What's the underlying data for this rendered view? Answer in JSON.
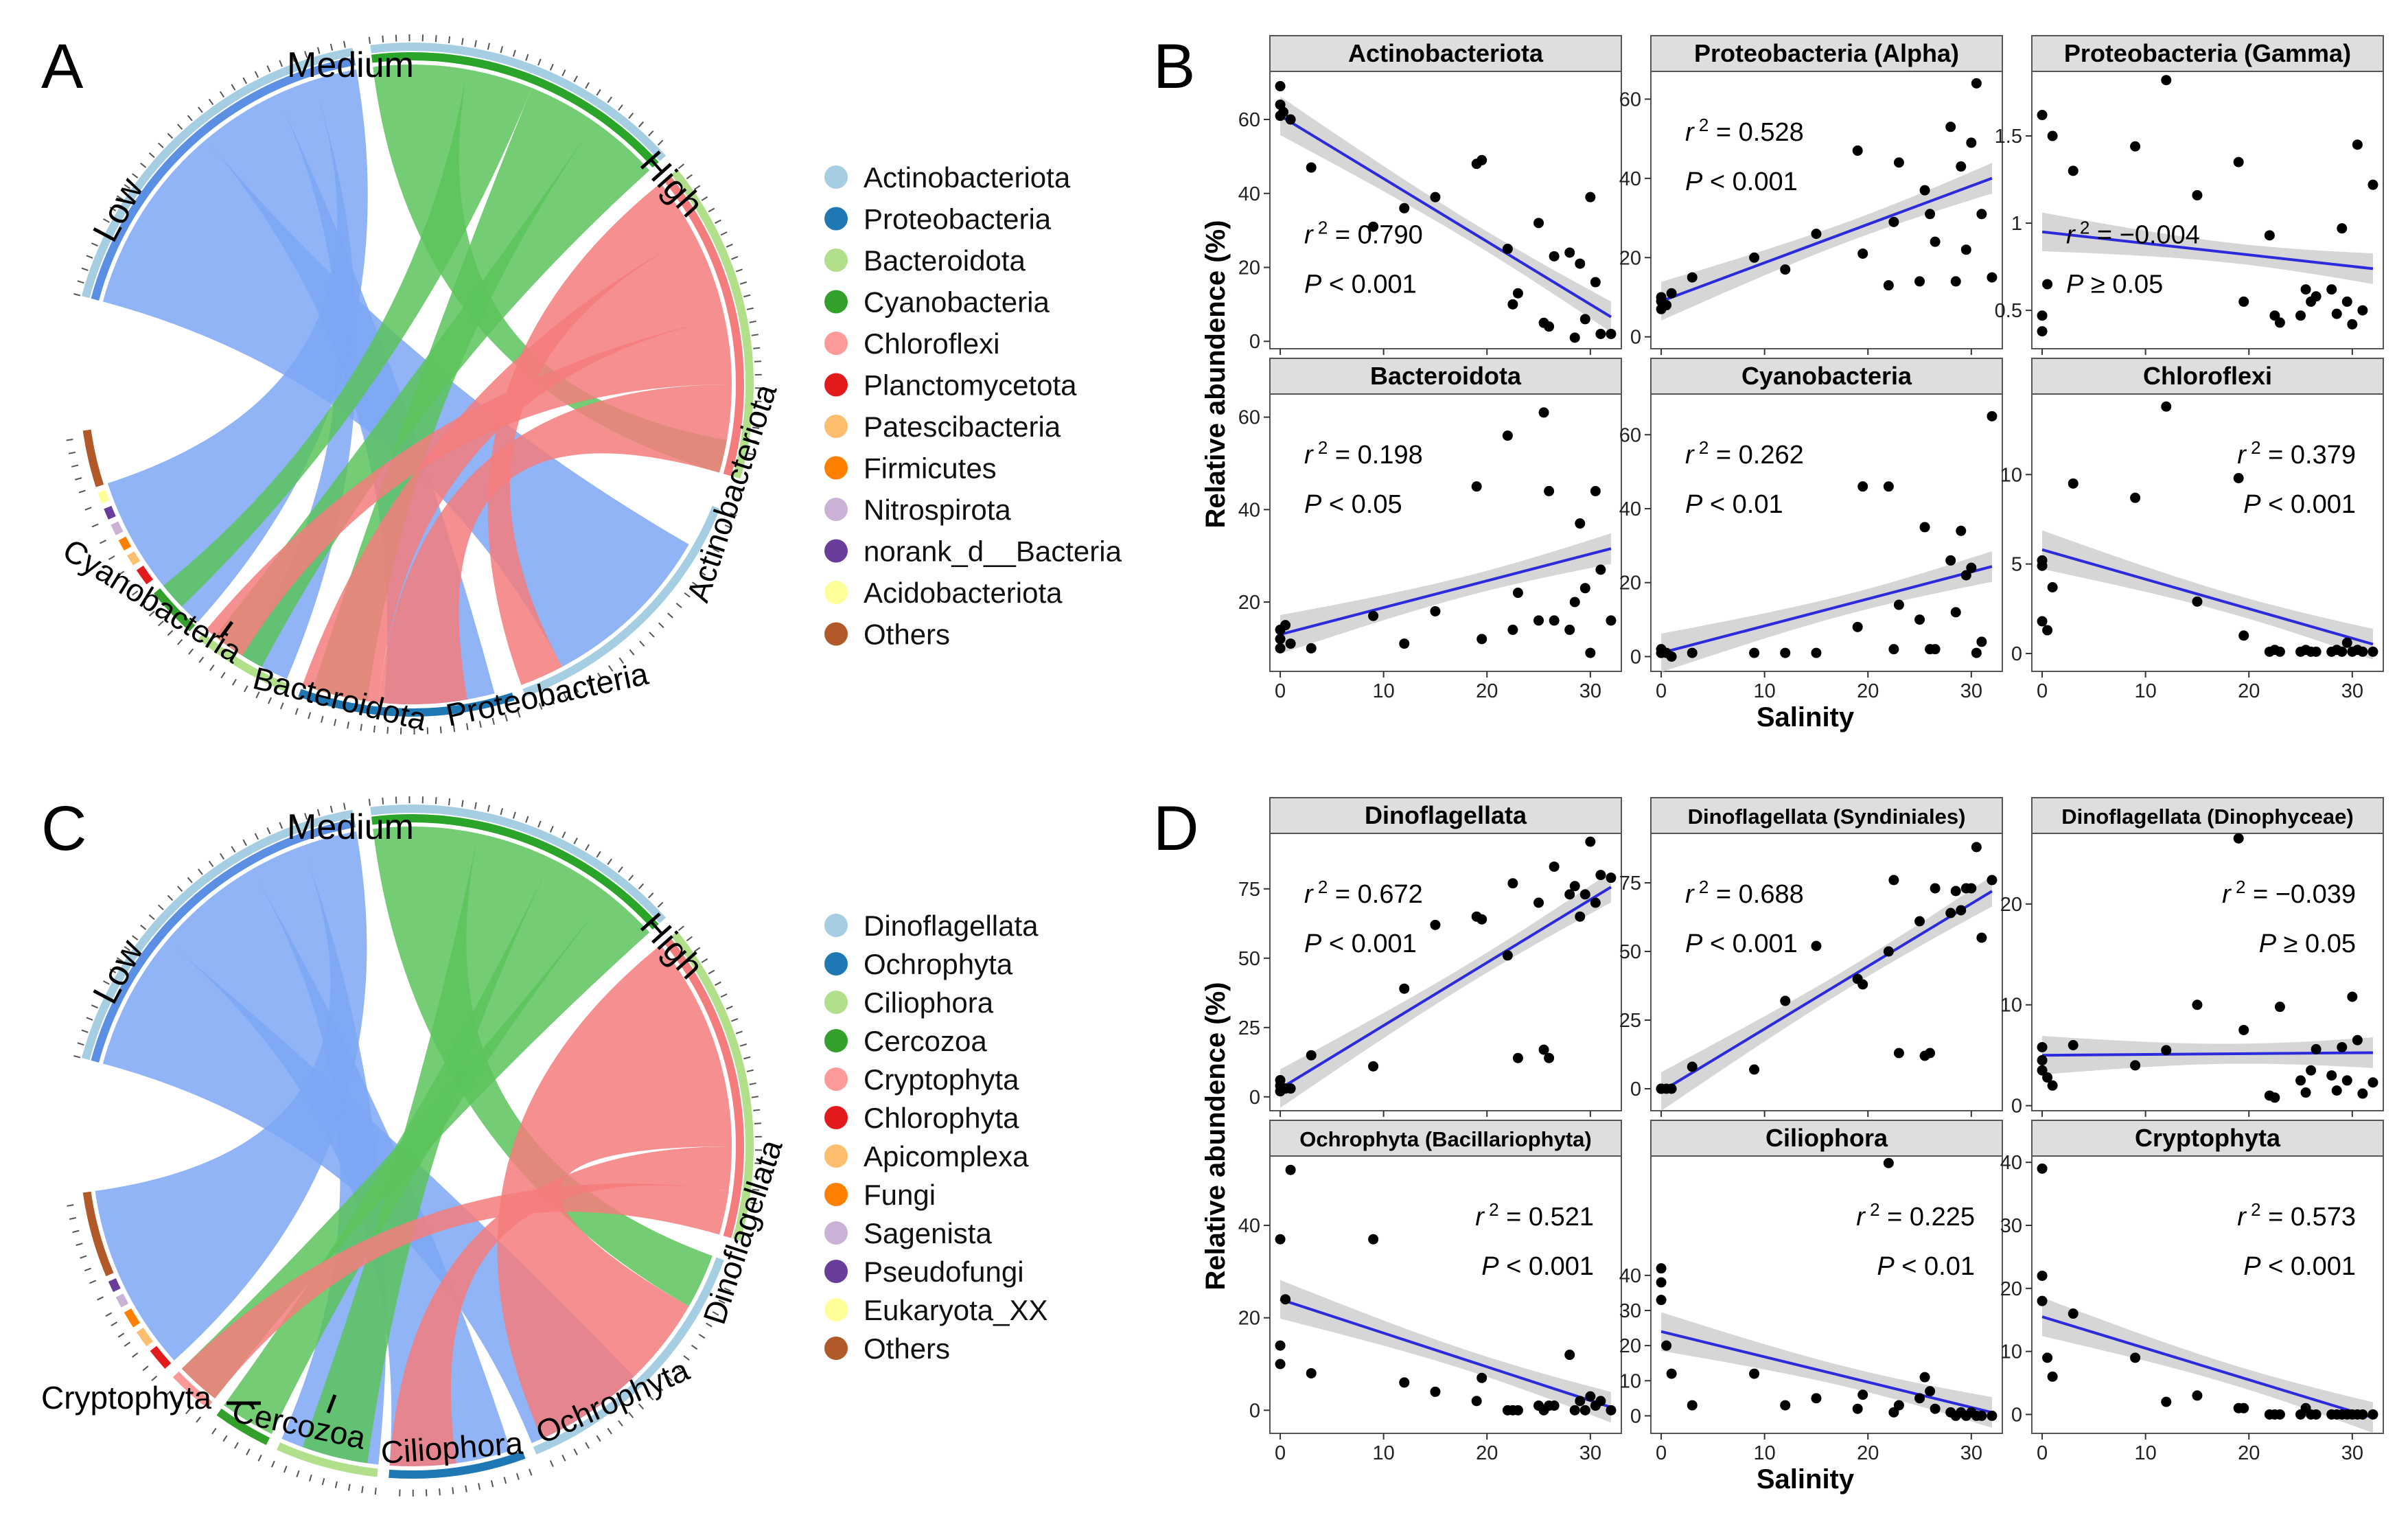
{
  "panels": {
    "A": "A",
    "B": "B",
    "C": "C",
    "D": "D"
  },
  "chord_A": {
    "groups": [
      "Low",
      "Medium",
      "High"
    ],
    "sector_labels": [
      "Cyanobacteria",
      "Bacteroidota",
      "Proteobacteria",
      "Actinobacteriota"
    ],
    "legend": [
      {
        "label": "Actinobacteriota",
        "color": "#a6cee3"
      },
      {
        "label": "Proteobacteria",
        "color": "#1f78b4"
      },
      {
        "label": "Bacteroidota",
        "color": "#b2df8a"
      },
      {
        "label": "Cyanobacteria",
        "color": "#33a02c"
      },
      {
        "label": "Chloroflexi",
        "color": "#fb9a99"
      },
      {
        "label": "Planctomycetota",
        "color": "#e31a1c"
      },
      {
        "label": "Patescibacteria",
        "color": "#fdbf6f"
      },
      {
        "label": "Firmicutes",
        "color": "#ff7f00"
      },
      {
        "label": "Nitrospirota",
        "color": "#cab2d6"
      },
      {
        "label": "norank_d__Bacteria",
        "color": "#6a3d9a"
      },
      {
        "label": "Acidobacteriota",
        "color": "#ffff99"
      },
      {
        "label": "Others",
        "color": "#b15928"
      }
    ]
  },
  "chord_C": {
    "groups": [
      "Low",
      "Medium",
      "High"
    ],
    "sector_labels": [
      "Cryptophyta",
      "Cercozoa",
      "Ciliophora",
      "Ochrophyta",
      "Dinoflagellata"
    ],
    "legend": [
      {
        "label": "Dinoflagellata",
        "color": "#a6cee3"
      },
      {
        "label": "Ochrophyta",
        "color": "#1f78b4"
      },
      {
        "label": "Ciliophora",
        "color": "#b2df8a"
      },
      {
        "label": "Cercozoa",
        "color": "#33a02c"
      },
      {
        "label": "Cryptophyta",
        "color": "#fb9a99"
      },
      {
        "label": "Chlorophyta",
        "color": "#e31a1c"
      },
      {
        "label": "Apicomplexa",
        "color": "#fdbf6f"
      },
      {
        "label": "Fungi",
        "color": "#ff7f00"
      },
      {
        "label": "Sagenista",
        "color": "#cab2d6"
      },
      {
        "label": "Pseudofungi",
        "color": "#6a3d9a"
      },
      {
        "label": "Eukaryota_XX",
        "color": "#ffff99"
      },
      {
        "label": "Others",
        "color": "#b15928"
      }
    ]
  },
  "colors": {
    "low_ribbon": "#7da7f5",
    "medium_ribbon": "#5cc35c",
    "high_ribbon": "#f47c7c",
    "regression_line": "#2b2bdc",
    "ci_band": "#cfcfcf",
    "strip_fill": "#dedede"
  },
  "axis_labels": {
    "B_ylabel": "Relative abundence (%)",
    "B_xlabel": "Salinity",
    "D_ylabel": "Relative abundence (%)",
    "D_xlabel": "Salinity"
  },
  "chart_data": [
    {
      "type": "scatter",
      "panel": "B",
      "title": "Actinobacteriota",
      "xlabel": "Salinity",
      "ylabel": "Relative abundence (%)",
      "xlim": [
        -1,
        33
      ],
      "ylim": [
        -2,
        73
      ],
      "xticks": [
        0,
        10,
        20,
        30
      ],
      "yticks": [
        0,
        20,
        40,
        60
      ],
      "x": [
        0,
        0,
        0,
        0.3,
        1,
        3,
        9,
        12,
        15,
        19,
        19.5,
        22,
        22.5,
        23,
        25,
        25.5,
        26,
        26.5,
        28,
        28.5,
        29,
        29.5,
        30,
        30.5,
        31,
        32
      ],
      "y": [
        69,
        64,
        61,
        62,
        60,
        47,
        31,
        36,
        39,
        48,
        49,
        25,
        10,
        13,
        32,
        5,
        4,
        23,
        24,
        1,
        21,
        6,
        39,
        16,
        2,
        2
      ],
      "fit": {
        "intercept": 61,
        "slope": -1.7
      },
      "r2": "0.790",
      "p": "< 0.001"
    },
    {
      "type": "scatter",
      "panel": "B",
      "title": "Proteobacteria (Alpha)",
      "xlabel": "Salinity",
      "ylabel": "Relative abundence (%)",
      "xlim": [
        -1,
        33
      ],
      "ylim": [
        -3,
        67
      ],
      "xticks": [
        0,
        10,
        20,
        30
      ],
      "yticks": [
        0,
        20,
        40,
        60
      ],
      "x": [
        0,
        0,
        0,
        0.5,
        1,
        3,
        9,
        12,
        15,
        19,
        19.5,
        22,
        22.5,
        23,
        25,
        25.5,
        26,
        26.5,
        28,
        28.5,
        29,
        29.5,
        30,
        30.5,
        31,
        32
      ],
      "y": [
        7,
        9,
        10,
        8,
        11,
        15,
        20,
        17,
        26,
        47,
        21,
        13,
        29,
        44,
        14,
        37,
        31,
        24,
        53,
        14,
        43,
        22,
        49,
        64,
        31,
        15
      ],
      "fit": {
        "intercept": 9,
        "slope": 0.97
      },
      "r2": "0.528",
      "p": "< 0.001"
    },
    {
      "type": "scatter",
      "panel": "B",
      "title": "Proteobacteria (Gamma)",
      "xlabel": "Salinity",
      "ylabel": "Relative abundence (%)",
      "xlim": [
        -1,
        33
      ],
      "ylim": [
        0.28,
        1.87
      ],
      "xticks": [
        0,
        10,
        20,
        30
      ],
      "yticks": [
        0.5,
        1.0,
        1.5
      ],
      "x": [
        0,
        0,
        0,
        0.5,
        1,
        3,
        9,
        12,
        15,
        19,
        19.5,
        22,
        22.5,
        23,
        25,
        25.5,
        26,
        26.5,
        28,
        28.5,
        29,
        29.5,
        30,
        30.5,
        31,
        32
      ],
      "y": [
        1.62,
        0.38,
        0.47,
        0.65,
        1.5,
        1.3,
        1.44,
        1.82,
        1.16,
        1.35,
        0.55,
        0.93,
        0.47,
        0.43,
        0.47,
        0.62,
        0.55,
        0.58,
        0.62,
        0.48,
        0.97,
        0.55,
        0.42,
        1.45,
        0.5,
        1.22
      ],
      "fit": {
        "intercept": 0.95,
        "slope": -0.0066
      },
      "r2": "−0.004",
      "p": "≥ 0.05"
    },
    {
      "type": "scatter",
      "panel": "B",
      "title": "Bacteroidota",
      "xlabel": "Salinity",
      "ylabel": "Relative abundence (%)",
      "xlim": [
        -1,
        33
      ],
      "ylim": [
        5,
        65
      ],
      "xticks": [
        0,
        10,
        20,
        30
      ],
      "yticks": [
        20,
        40,
        60
      ],
      "x": [
        0,
        0,
        0,
        0.5,
        1,
        3,
        9,
        12,
        15,
        19,
        19.5,
        22,
        22.5,
        23,
        25,
        25.5,
        26,
        26.5,
        28,
        28.5,
        29,
        29.5,
        30,
        30.5,
        31,
        32
      ],
      "y": [
        14,
        12,
        10,
        15,
        11,
        10,
        17,
        11,
        18,
        45,
        12,
        56,
        14,
        22,
        16,
        61,
        44,
        16,
        14,
        20,
        37,
        23,
        9,
        44,
        27,
        16
      ],
      "fit": {
        "intercept": 13,
        "slope": 0.58
      },
      "r2": "0.198",
      "p": "< 0.05"
    },
    {
      "type": "scatter",
      "panel": "B",
      "title": "Cyanobacteria",
      "xlabel": "Salinity",
      "ylabel": "Relative abundence (%)",
      "xlim": [
        -1,
        33
      ],
      "ylim": [
        -4,
        71
      ],
      "xticks": [
        0,
        10,
        20,
        30
      ],
      "yticks": [
        0,
        20,
        40,
        60
      ],
      "x": [
        0,
        0,
        0,
        0.5,
        1,
        3,
        9,
        12,
        15,
        19,
        19.5,
        22,
        22.5,
        23,
        25,
        25.5,
        26,
        26.5,
        28,
        28.5,
        29,
        29.5,
        30,
        30.5,
        31,
        32
      ],
      "y": [
        1,
        2,
        1,
        1,
        0,
        1,
        1,
        1,
        1,
        8,
        46,
        46,
        2,
        14,
        10,
        35,
        2,
        2,
        26,
        12,
        34,
        22,
        24,
        1,
        4,
        65
      ],
      "fit": {
        "intercept": 1,
        "slope": 0.73
      },
      "r2": "0.262",
      "p": "< 0.01"
    },
    {
      "type": "scatter",
      "panel": "B",
      "title": "Chloroflexi",
      "xlabel": "Salinity",
      "ylabel": "Relative abundence (%)",
      "xlim": [
        -1,
        33
      ],
      "ylim": [
        -1,
        14.5
      ],
      "xticks": [
        0,
        10,
        20,
        30
      ],
      "yticks": [
        0,
        5,
        10
      ],
      "x": [
        0,
        0,
        0,
        0.5,
        1,
        3,
        9,
        12,
        15,
        19,
        19.5,
        22,
        22.5,
        23,
        25,
        25.5,
        26,
        26.5,
        28,
        28.5,
        29,
        29.5,
        30,
        30.5,
        31,
        32
      ],
      "y": [
        5.2,
        4.9,
        1.8,
        1.3,
        3.7,
        9.5,
        8.7,
        13.8,
        2.9,
        9.8,
        1.0,
        0.1,
        0.2,
        0.1,
        0.1,
        0.2,
        0.1,
        0.1,
        0.1,
        0.2,
        0.1,
        0.6,
        0.1,
        0.2,
        0.1,
        0.1
      ],
      "fit": {
        "intercept": 5.8,
        "slope": -0.165
      },
      "r2": "0.379",
      "p": "< 0.001"
    },
    {
      "type": "scatter",
      "panel": "D",
      "title": "Dinoflagellata",
      "xlabel": "Salinity",
      "ylabel": "Relative abundence (%)",
      "xlim": [
        -1,
        33
      ],
      "ylim": [
        -5,
        95
      ],
      "xticks": [
        0,
        10,
        20,
        30
      ],
      "yticks": [
        0,
        25,
        50,
        75
      ],
      "x": [
        0,
        0,
        0,
        0.5,
        1,
        3,
        9,
        12,
        15,
        19,
        19.5,
        22,
        22.5,
        23,
        25,
        25.5,
        26,
        26.5,
        28,
        28.5,
        29,
        29.5,
        30,
        30.5,
        31,
        32
      ],
      "y": [
        4,
        2,
        6,
        3,
        3,
        15,
        11,
        39,
        62,
        65,
        64,
        51,
        77,
        14,
        70,
        17,
        14,
        83,
        73,
        76,
        65,
        73,
        92,
        70,
        80,
        79
      ],
      "fit": {
        "intercept": 3,
        "slope": 2.27
      },
      "r2": "0.672",
      "p": "< 0.001"
    },
    {
      "type": "scatter",
      "panel": "D",
      "title": "Dinoflagellata (Syndiniales)",
      "xlabel": "Salinity",
      "ylabel": "Relative abundence (%)",
      "xlim": [
        -1,
        33
      ],
      "ylim": [
        -8,
        93
      ],
      "xticks": [
        0,
        10,
        20,
        30
      ],
      "yticks": [
        0,
        25,
        50,
        75
      ],
      "x": [
        0,
        0,
        0,
        0.5,
        1,
        3,
        9,
        12,
        15,
        19,
        19.5,
        22,
        22.5,
        23,
        25,
        25.5,
        26,
        26.5,
        28,
        28.5,
        29,
        29.5,
        30,
        30.5,
        31,
        32
      ],
      "y": [
        0,
        0,
        0,
        0,
        0,
        8,
        7,
        32,
        52,
        40,
        38,
        50,
        76,
        13,
        61,
        12,
        13,
        73,
        64,
        72,
        65,
        73,
        73,
        88,
        55,
        76
      ],
      "fit": {
        "intercept": -1,
        "slope": 2.28
      },
      "r2": "0.688",
      "p": "< 0.001"
    },
    {
      "type": "scatter",
      "panel": "D",
      "title": "Dinoflagellata (Dinophyceae)",
      "xlabel": "Salinity",
      "ylabel": "Relative abundence (%)",
      "xlim": [
        -1,
        33
      ],
      "ylim": [
        -0.5,
        27
      ],
      "xticks": [
        0,
        10,
        20,
        30
      ],
      "yticks": [
        0,
        10,
        20
      ],
      "x": [
        0,
        0,
        0,
        0.5,
        1,
        3,
        9,
        12,
        15,
        19,
        19.5,
        22,
        22.5,
        23,
        25,
        25.5,
        26,
        26.5,
        28,
        28.5,
        29,
        29.5,
        30,
        30.5,
        31,
        32
      ],
      "y": [
        4.5,
        3.5,
        5.8,
        2.8,
        2.0,
        6.0,
        4.0,
        5.5,
        10.0,
        26.5,
        7.5,
        1.0,
        0.8,
        9.8,
        2.5,
        1.3,
        3.5,
        5.6,
        3.0,
        1.5,
        5.8,
        2.5,
        10.8,
        6.5,
        1.2,
        2.3
      ],
      "fit": {
        "intercept": 5,
        "slope": 0.008
      },
      "r2": "−0.039",
      "p": "≥ 0.05"
    },
    {
      "type": "scatter",
      "panel": "D",
      "title": "Ochrophyta (Bacillariophyta)",
      "xlabel": "Salinity",
      "ylabel": "Relative abundence (%)",
      "xlim": [
        -1,
        33
      ],
      "ylim": [
        -5,
        55
      ],
      "xticks": [
        0,
        10,
        20,
        30
      ],
      "yticks": [
        0,
        20,
        40
      ],
      "x": [
        0,
        0,
        0,
        0.5,
        1,
        3,
        9,
        12,
        15,
        19,
        19.5,
        22,
        22.5,
        23,
        25,
        25.5,
        26,
        26.5,
        28,
        28.5,
        29,
        29.5,
        30,
        30.5,
        31,
        32
      ],
      "y": [
        37,
        14,
        10,
        24,
        52,
        8,
        37,
        6,
        4,
        2,
        7,
        0,
        0,
        0,
        1,
        0,
        1,
        1,
        12,
        0,
        2,
        0,
        3,
        1,
        2,
        0
      ],
      "fit": {
        "intercept": 24,
        "slope": -0.73
      },
      "r2": "0.521",
      "p": "< 0.001"
    },
    {
      "type": "scatter",
      "panel": "D",
      "title": "Ciliophora",
      "xlabel": "Salinity",
      "ylabel": "Relative abundence (%)",
      "xlim": [
        -1,
        33
      ],
      "ylim": [
        -5,
        74
      ],
      "xticks": [
        0,
        10,
        20,
        30
      ],
      "yticks": [
        0,
        10,
        20,
        30,
        40
      ],
      "x": [
        0,
        0,
        0,
        0.5,
        1,
        3,
        9,
        12,
        15,
        19,
        19.5,
        22,
        22.5,
        23,
        25,
        25.5,
        26,
        26.5,
        28,
        28.5,
        29,
        29.5,
        30,
        30.5,
        31,
        32
      ],
      "y": [
        42,
        38,
        33,
        20,
        12,
        3,
        12,
        3,
        5,
        2,
        6,
        72,
        1,
        3,
        5,
        11,
        7,
        2,
        1,
        0,
        1,
        0,
        1,
        0,
        0,
        0
      ],
      "fit": {
        "intercept": 24,
        "slope": -0.72
      },
      "r2": "0.225",
      "p": "< 0.01"
    },
    {
      "type": "scatter",
      "panel": "D",
      "title": "Cryptophyta",
      "xlabel": "Salinity",
      "ylabel": "Relative abundence (%)",
      "xlim": [
        -1,
        33
      ],
      "ylim": [
        -3,
        41
      ],
      "xticks": [
        0,
        10,
        20,
        30
      ],
      "yticks": [
        0,
        10,
        20,
        30,
        40
      ],
      "x": [
        0,
        0,
        0,
        0.5,
        1,
        3,
        9,
        12,
        15,
        19,
        19.5,
        22,
        22.5,
        23,
        25,
        25.5,
        26,
        26.5,
        28,
        28.5,
        29,
        29.5,
        30,
        30.5,
        31,
        32
      ],
      "y": [
        39,
        22,
        18,
        9,
        6,
        16,
        9,
        2,
        3,
        1,
        1,
        0,
        0,
        0,
        0,
        1,
        0,
        0,
        0,
        0,
        0,
        0,
        0,
        0,
        0,
        0
      ],
      "fit": {
        "intercept": 15.5,
        "slope": -0.5
      },
      "r2": "0.573",
      "p": "< 0.001"
    }
  ]
}
